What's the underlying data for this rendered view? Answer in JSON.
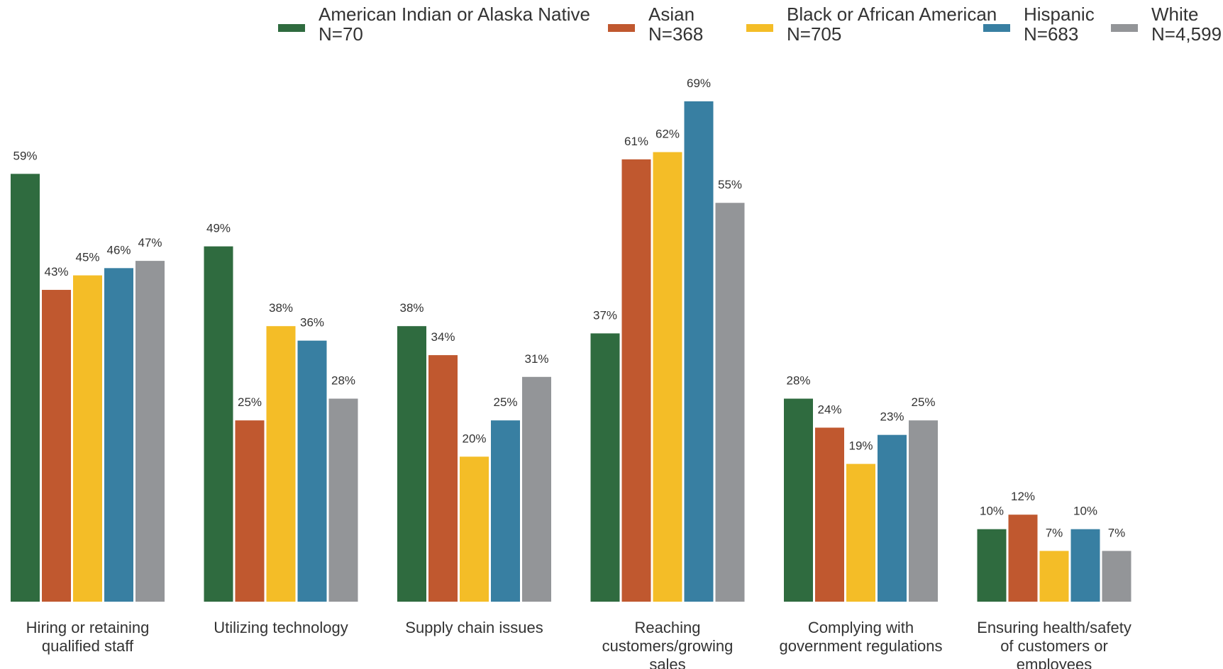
{
  "chart_data": {
    "type": "bar",
    "categories": [
      [
        "Hiring or retaining",
        "qualified staff"
      ],
      [
        "Utilizing technology"
      ],
      [
        "Supply chain issues"
      ],
      [
        "Reaching",
        "customers/growing",
        "sales"
      ],
      [
        "Complying with",
        "government regulations"
      ],
      [
        "Ensuring health/safety",
        "of customers or",
        "employees"
      ]
    ],
    "series": [
      {
        "name": "American Indian or Alaska Native",
        "n_label": "N=70",
        "color": "#2f6b3f",
        "values": [
          59,
          49,
          38,
          37,
          28,
          10
        ]
      },
      {
        "name": "Asian",
        "n_label": "N=368",
        "color": "#c0582f",
        "values": [
          43,
          25,
          34,
          61,
          24,
          12
        ]
      },
      {
        "name": "Black or African American",
        "n_label": "N=705",
        "color": "#f4bd27",
        "values": [
          45,
          38,
          20,
          62,
          19,
          7
        ]
      },
      {
        "name": "Hispanic",
        "n_label": "N=683",
        "color": "#387fa2",
        "values": [
          46,
          36,
          25,
          69,
          23,
          10
        ]
      },
      {
        "name": "White",
        "n_label": "N=4,599",
        "color": "#939598",
        "values": [
          47,
          28,
          31,
          55,
          25,
          7
        ]
      }
    ],
    "value_suffix": "%",
    "ylim": [
      0,
      69
    ],
    "legend_position": "top",
    "grid": false,
    "title": "",
    "xlabel": "",
    "ylabel": ""
  }
}
